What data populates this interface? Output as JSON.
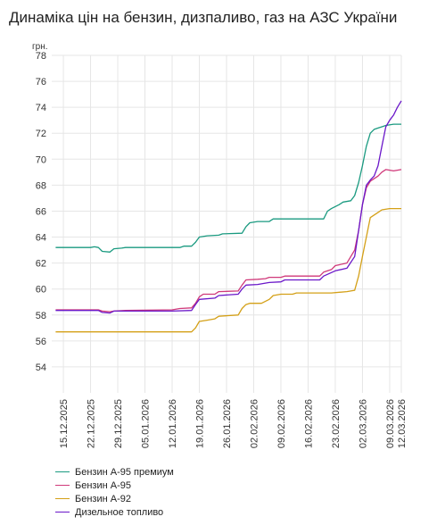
{
  "title": "Динаміка цін на бензин, дизпаливо, газ на АЗС України",
  "chart_data": {
    "type": "line",
    "title": "Динаміка цін на бензин, дизпаливо, газ на АЗС України",
    "ylabel": "грн.",
    "xlabel": "",
    "ylim": [
      52,
      78
    ],
    "yticks": [
      54,
      56,
      58,
      60,
      62,
      64,
      66,
      68,
      70,
      72,
      74,
      76,
      78
    ],
    "xlim": [
      "2025-12-12",
      "2026-03-12"
    ],
    "xticks": [
      "15.12.2025",
      "22.12.2025",
      "29.12.2025",
      "05.01.2026",
      "12.01.2026",
      "19.01.2026",
      "26.01.2026",
      "02.02.2026",
      "09.02.2026",
      "16.02.2026",
      "23.02.2026",
      "02.03.2026",
      "09.03.2026",
      "12.03.2026"
    ],
    "grid": true,
    "legend_position": "bottom-left",
    "series": [
      {
        "name": "Бензин А-95 премиум",
        "color": "#1a9a80",
        "points": [
          [
            "2025-12-13",
            63.2
          ],
          [
            "2025-12-20",
            63.2
          ],
          [
            "2025-12-22",
            63.2
          ],
          [
            "2025-12-23",
            63.25
          ],
          [
            "2025-12-24",
            63.2
          ],
          [
            "2025-12-25",
            62.9
          ],
          [
            "2025-12-27",
            62.85
          ],
          [
            "2025-12-28",
            63.1
          ],
          [
            "2025-12-30",
            63.15
          ],
          [
            "2025-12-31",
            63.2
          ],
          [
            "2026-01-08",
            63.2
          ],
          [
            "2026-01-14",
            63.2
          ],
          [
            "2026-01-15",
            63.3
          ],
          [
            "2026-01-17",
            63.3
          ],
          [
            "2026-01-18",
            63.6
          ],
          [
            "2026-01-19",
            64.0
          ],
          [
            "2026-01-21",
            64.1
          ],
          [
            "2026-01-24",
            64.15
          ],
          [
            "2026-01-25",
            64.25
          ],
          [
            "2026-01-30",
            64.3
          ],
          [
            "2026-01-31",
            64.8
          ],
          [
            "2026-02-01",
            65.1
          ],
          [
            "2026-02-03",
            65.2
          ],
          [
            "2026-02-06",
            65.2
          ],
          [
            "2026-02-07",
            65.4
          ],
          [
            "2026-02-19",
            65.4
          ],
          [
            "2026-02-20",
            65.4
          ],
          [
            "2026-02-21",
            66.0
          ],
          [
            "2026-02-22",
            66.2
          ],
          [
            "2026-02-24",
            66.5
          ],
          [
            "2026-02-25",
            66.7
          ],
          [
            "2026-02-27",
            66.8
          ],
          [
            "2026-02-28",
            67.2
          ],
          [
            "2026-03-01",
            68.2
          ],
          [
            "2026-03-02",
            69.5
          ],
          [
            "2026-03-03",
            71.0
          ],
          [
            "2026-03-04",
            72.0
          ],
          [
            "2026-03-05",
            72.3
          ],
          [
            "2026-03-06",
            72.4
          ],
          [
            "2026-03-07",
            72.5
          ],
          [
            "2026-03-08",
            72.6
          ],
          [
            "2026-03-10",
            72.7
          ],
          [
            "2026-03-12",
            72.7
          ]
        ]
      },
      {
        "name": "Бензин А-95",
        "color": "#d0397a",
        "points": [
          [
            "2025-12-13",
            58.4
          ],
          [
            "2025-12-24",
            58.4
          ],
          [
            "2025-12-25",
            58.3
          ],
          [
            "2025-12-27",
            58.25
          ],
          [
            "2025-12-28",
            58.3
          ],
          [
            "2025-12-31",
            58.35
          ],
          [
            "2026-01-12",
            58.4
          ],
          [
            "2026-01-14",
            58.5
          ],
          [
            "2026-01-17",
            58.55
          ],
          [
            "2026-01-18",
            58.9
          ],
          [
            "2026-01-19",
            59.4
          ],
          [
            "2026-01-20",
            59.6
          ],
          [
            "2026-01-23",
            59.6
          ],
          [
            "2026-01-24",
            59.8
          ],
          [
            "2026-01-29",
            59.85
          ],
          [
            "2026-01-30",
            60.3
          ],
          [
            "2026-01-31",
            60.7
          ],
          [
            "2026-02-03",
            60.75
          ],
          [
            "2026-02-05",
            60.8
          ],
          [
            "2026-02-06",
            60.9
          ],
          [
            "2026-02-09",
            60.9
          ],
          [
            "2026-02-10",
            61.0
          ],
          [
            "2026-02-19",
            61.0
          ],
          [
            "2026-02-20",
            61.3
          ],
          [
            "2026-02-22",
            61.5
          ],
          [
            "2026-02-23",
            61.8
          ],
          [
            "2026-02-26",
            62.0
          ],
          [
            "2026-02-28",
            63.0
          ],
          [
            "2026-03-01",
            64.5
          ],
          [
            "2026-03-02",
            66.5
          ],
          [
            "2026-03-03",
            67.8
          ],
          [
            "2026-03-04",
            68.3
          ],
          [
            "2026-03-05",
            68.5
          ],
          [
            "2026-03-06",
            68.7
          ],
          [
            "2026-03-07",
            69.0
          ],
          [
            "2026-03-08",
            69.2
          ],
          [
            "2026-03-10",
            69.1
          ],
          [
            "2026-03-12",
            69.2
          ]
        ]
      },
      {
        "name": "Бензин А-92",
        "color": "#d4a017",
        "points": [
          [
            "2025-12-13",
            56.7
          ],
          [
            "2025-12-24",
            56.7
          ],
          [
            "2026-01-12",
            56.7
          ],
          [
            "2026-01-17",
            56.7
          ],
          [
            "2026-01-18",
            57.0
          ],
          [
            "2026-01-19",
            57.5
          ],
          [
            "2026-01-21",
            57.6
          ],
          [
            "2026-01-23",
            57.7
          ],
          [
            "2026-01-24",
            57.9
          ],
          [
            "2026-01-29",
            58.0
          ],
          [
            "2026-01-30",
            58.5
          ],
          [
            "2026-01-31",
            58.8
          ],
          [
            "2026-02-01",
            58.9
          ],
          [
            "2026-02-04",
            58.9
          ],
          [
            "2026-02-06",
            59.2
          ],
          [
            "2026-02-07",
            59.5
          ],
          [
            "2026-02-09",
            59.6
          ],
          [
            "2026-02-12",
            59.6
          ],
          [
            "2026-02-13",
            59.7
          ],
          [
            "2026-02-16",
            59.7
          ],
          [
            "2026-02-20",
            59.7
          ],
          [
            "2026-02-22",
            59.7
          ],
          [
            "2026-02-26",
            59.8
          ],
          [
            "2026-02-28",
            59.9
          ],
          [
            "2026-03-01",
            61.0
          ],
          [
            "2026-03-02",
            62.5
          ],
          [
            "2026-03-03",
            64.0
          ],
          [
            "2026-03-04",
            65.5
          ],
          [
            "2026-03-06",
            65.9
          ],
          [
            "2026-03-07",
            66.1
          ],
          [
            "2026-03-09",
            66.2
          ],
          [
            "2026-03-12",
            66.2
          ]
        ]
      },
      {
        "name": "Дизельное топливо",
        "color": "#6a17c9",
        "points": [
          [
            "2025-12-13",
            58.35
          ],
          [
            "2025-12-24",
            58.35
          ],
          [
            "2025-12-25",
            58.2
          ],
          [
            "2025-12-27",
            58.15
          ],
          [
            "2025-12-28",
            58.3
          ],
          [
            "2025-12-31",
            58.3
          ],
          [
            "2026-01-12",
            58.3
          ],
          [
            "2026-01-17",
            58.35
          ],
          [
            "2026-01-18",
            58.8
          ],
          [
            "2026-01-19",
            59.2
          ],
          [
            "2026-01-23",
            59.3
          ],
          [
            "2026-01-24",
            59.5
          ],
          [
            "2026-01-29",
            59.6
          ],
          [
            "2026-01-30",
            60.0
          ],
          [
            "2026-01-31",
            60.3
          ],
          [
            "2026-02-03",
            60.35
          ],
          [
            "2026-02-06",
            60.5
          ],
          [
            "2026-02-09",
            60.55
          ],
          [
            "2026-02-10",
            60.7
          ],
          [
            "2026-02-19",
            60.7
          ],
          [
            "2026-02-20",
            61.0
          ],
          [
            "2026-02-23",
            61.4
          ],
          [
            "2026-02-26",
            61.6
          ],
          [
            "2026-02-28",
            62.5
          ],
          [
            "2026-03-01",
            64.5
          ],
          [
            "2026-03-02",
            66.5
          ],
          [
            "2026-03-03",
            68.0
          ],
          [
            "2026-03-04",
            68.4
          ],
          [
            "2026-03-05",
            68.7
          ],
          [
            "2026-03-06",
            69.5
          ],
          [
            "2026-03-07",
            71.0
          ],
          [
            "2026-03-08",
            72.5
          ],
          [
            "2026-03-09",
            73.0
          ],
          [
            "2026-03-10",
            73.4
          ],
          [
            "2026-03-11",
            74.0
          ],
          [
            "2026-03-12",
            74.5
          ]
        ]
      }
    ]
  }
}
